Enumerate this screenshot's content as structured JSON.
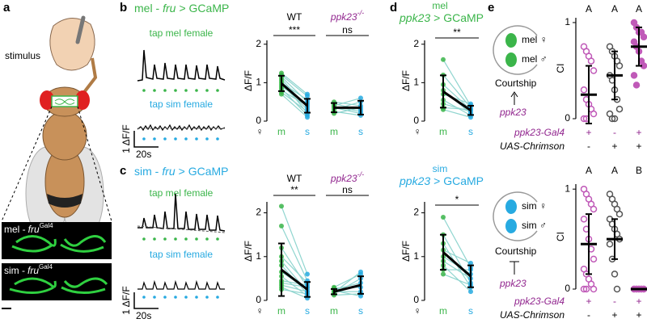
{
  "panels": {
    "a": {
      "label": "a",
      "stimulus": "stimulus",
      "brain_labels": [
        [
          "mel -",
          "fru",
          "Gal4"
        ],
        [
          "sim -",
          "fru",
          "Gal4"
        ]
      ]
    },
    "b": {
      "label": "b",
      "title": [
        "mel -",
        "fru",
        "> GCaMP"
      ],
      "traces": [
        "tap mel female",
        "tap sim female"
      ],
      "scale_y": "1 ΔF/F",
      "scale_x": "20s"
    },
    "c": {
      "label": "c",
      "title": [
        "sim -",
        "fru",
        "> GCaMP"
      ],
      "traces": [
        "tap mel female",
        "tap sim female"
      ],
      "scale_y": "1 ΔF/F",
      "scale_x": "20s"
    },
    "d": {
      "label": "d",
      "titles": [
        [
          "mel",
          "ppk23",
          "> GCaMP"
        ],
        [
          "sim",
          "ppk23",
          "> GCaMP"
        ]
      ]
    },
    "e": {
      "label": "e",
      "schematics": [
        {
          "female": "mel ♀",
          "male": "mel ♂",
          "behavior": "Courtship",
          "gene": "ppk23"
        },
        {
          "female": "sim ♀",
          "male": "sim ♂",
          "behavior": "Courtship",
          "gene": "ppk23"
        }
      ]
    }
  },
  "chart_data": [
    {
      "type": "paired",
      "ylabel": "ΔF/F",
      "ylim": [
        0,
        2.1
      ],
      "yticks": [
        0,
        1,
        2
      ],
      "sex": "♀",
      "category_colors": [
        "#3bb54a",
        "#27aae1"
      ],
      "pair_color": "#8fd5cf",
      "groups": [
        {
          "name": "WT",
          "name_color": "#000000",
          "name_italic": false,
          "sig": "***",
          "categories": [
            "m",
            "s"
          ],
          "mean": [
            0.98,
            0.4
          ],
          "error": [
            0.2,
            0.18
          ],
          "pairs": [
            [
              1.2,
              0.65
            ],
            [
              1.15,
              0.5
            ],
            [
              1.1,
              0.35
            ],
            [
              1.05,
              0.2
            ],
            [
              1.0,
              0.55
            ],
            [
              0.95,
              0.3
            ],
            [
              0.9,
              0.45
            ],
            [
              0.85,
              0.15
            ],
            [
              0.8,
              0.4
            ],
            [
              0.75,
              0.25
            ],
            [
              1.25,
              0.7
            ],
            [
              0.7,
              0.1
            ]
          ]
        },
        {
          "name": "ppk23",
          "name_sup": "-/-",
          "name_color": "#92278f",
          "name_italic": true,
          "sig": "ns",
          "categories": [
            "m",
            "s"
          ],
          "mean": [
            0.35,
            0.35
          ],
          "error": [
            0.12,
            0.18
          ],
          "pairs": [
            [
              0.45,
              0.3
            ],
            [
              0.4,
              0.6
            ],
            [
              0.35,
              0.2
            ],
            [
              0.3,
              0.5
            ],
            [
              0.25,
              0.15
            ],
            [
              0.5,
              0.4
            ],
            [
              0.2,
              0.35
            ],
            [
              0.38,
              0.25
            ]
          ]
        }
      ]
    },
    {
      "type": "paired",
      "ylabel": "ΔF/F",
      "ylim": [
        0,
        2.25
      ],
      "yticks": [
        0,
        1,
        2
      ],
      "sex": "♀",
      "category_colors": [
        "#3bb54a",
        "#27aae1"
      ],
      "pair_color": "#8fd5cf",
      "groups": [
        {
          "name": "WT",
          "name_color": "#000000",
          "name_italic": false,
          "sig": "**",
          "categories": [
            "m",
            "s"
          ],
          "mean": [
            0.7,
            0.25
          ],
          "error": [
            0.6,
            0.17
          ],
          "pairs": [
            [
              2.15,
              0.6
            ],
            [
              1.7,
              0.45
            ],
            [
              1.2,
              0.3
            ],
            [
              1.0,
              0.4
            ],
            [
              0.9,
              0.2
            ],
            [
              0.8,
              0.15
            ],
            [
              0.65,
              0.25
            ],
            [
              0.55,
              0.1
            ],
            [
              0.45,
              0.35
            ],
            [
              0.35,
              0.2
            ],
            [
              0.3,
              0.05
            ],
            [
              0.25,
              0.15
            ],
            [
              0.4,
              0.3
            ]
          ]
        },
        {
          "name": "ppk23",
          "name_sup": "-/-",
          "name_color": "#92278f",
          "name_italic": true,
          "sig": "ns",
          "categories": [
            "m",
            "s"
          ],
          "mean": [
            0.2,
            0.35
          ],
          "error": [
            0.06,
            0.2
          ],
          "pairs": [
            [
              0.3,
              0.6
            ],
            [
              0.25,
              0.4
            ],
            [
              0.2,
              0.2
            ],
            [
              0.15,
              0.5
            ],
            [
              0.22,
              0.1
            ],
            [
              0.28,
              0.3
            ],
            [
              0.18,
              0.65
            ],
            [
              0.12,
              0.15
            ]
          ]
        }
      ]
    },
    {
      "type": "paired",
      "ylabel": "ΔF/F",
      "ylim": [
        0,
        2.1
      ],
      "yticks": [
        0,
        1,
        2
      ],
      "sex": "♀",
      "category_colors": [
        "#3bb54a",
        "#27aae1"
      ],
      "pair_color": "#8fd5cf",
      "groups": [
        {
          "sig": "**",
          "categories": [
            "m",
            "s"
          ],
          "mean": [
            0.77,
            0.28
          ],
          "error": [
            0.42,
            0.12
          ],
          "pairs": [
            [
              1.6,
              0.4
            ],
            [
              1.2,
              0.35
            ],
            [
              0.95,
              0.3
            ],
            [
              0.8,
              0.2
            ],
            [
              0.7,
              0.45
            ],
            [
              0.55,
              0.15
            ],
            [
              0.45,
              0.25
            ],
            [
              0.35,
              0.3
            ],
            [
              0.3,
              0.1
            ]
          ]
        }
      ]
    },
    {
      "type": "paired",
      "ylabel": "ΔF/F",
      "ylim": [
        0,
        2.25
      ],
      "yticks": [
        0,
        1,
        2
      ],
      "sex": "♀",
      "category_colors": [
        "#3bb54a",
        "#27aae1"
      ],
      "pair_color": "#8fd5cf",
      "groups": [
        {
          "sig": "*",
          "categories": [
            "m",
            "s"
          ],
          "mean": [
            1.1,
            0.55
          ],
          "error": [
            0.4,
            0.25
          ],
          "pairs": [
            [
              1.9,
              0.75
            ],
            [
              1.5,
              0.4
            ],
            [
              1.3,
              0.3
            ],
            [
              1.15,
              0.85
            ],
            [
              1.0,
              0.6
            ],
            [
              0.9,
              0.5
            ],
            [
              0.8,
              0.2
            ],
            [
              0.7,
              0.7
            ],
            [
              0.6,
              0.35
            ]
          ]
        }
      ]
    },
    {
      "type": "strip",
      "ylabel": "CI",
      "ylim": [
        0,
        1.05
      ],
      "yticks": [
        0,
        1
      ],
      "letters": [
        "A",
        "A",
        "A"
      ],
      "groups": [
        {
          "style": "open",
          "color": "#c05ab8",
          "mean": 0.25,
          "error": 0.3,
          "values": [
            0.75,
            0.7,
            0.65,
            0.6,
            0.5,
            0.3,
            0.2,
            0.15,
            0.1,
            0.05,
            0.0,
            0.0
          ]
        },
        {
          "style": "open",
          "color": "#555555",
          "mean": 0.45,
          "error": 0.25,
          "values": [
            0.75,
            0.7,
            0.65,
            0.6,
            0.55,
            0.45,
            0.4,
            0.3,
            0.2,
            0.1,
            0.05,
            0.0,
            0.0
          ]
        },
        {
          "style": "filled",
          "color": "#c05ab8",
          "mean": 0.75,
          "error": 0.2,
          "values": [
            1.0,
            0.95,
            0.9,
            0.9,
            0.85,
            0.8,
            0.75,
            0.7,
            0.6,
            0.55,
            0.45,
            0.35
          ]
        }
      ],
      "genotype_rows": [
        {
          "name": "ppk23-Gal4",
          "color": "#92278f",
          "marks": [
            "+",
            "-",
            "+"
          ]
        },
        {
          "name": "UAS-Chrimson",
          "color": "#000000",
          "marks": [
            "-",
            "+",
            "+"
          ]
        }
      ]
    },
    {
      "type": "strip",
      "ylabel": "CI",
      "ylim": [
        0,
        1.05
      ],
      "yticks": [
        0,
        1
      ],
      "letters": [
        "A",
        "A",
        "B"
      ],
      "groups": [
        {
          "style": "open",
          "color": "#c05ab8",
          "mean": 0.45,
          "error": 0.3,
          "values": [
            1.0,
            0.95,
            0.9,
            0.85,
            0.8,
            0.7,
            0.6,
            0.5,
            0.4,
            0.3,
            0.2,
            0.15,
            0.1,
            0.05,
            0.0,
            0.0,
            0.0
          ]
        },
        {
          "style": "open",
          "color": "#555555",
          "mean": 0.5,
          "error": 0.2,
          "values": [
            0.95,
            0.9,
            0.85,
            0.8,
            0.75,
            0.7,
            0.65,
            0.6,
            0.55,
            0.5,
            0.45,
            0.3,
            0.15,
            0.0
          ]
        },
        {
          "style": "filled",
          "color": "#c05ab8",
          "mean": 0.0,
          "error": 0.0,
          "values": [
            0,
            0,
            0,
            0,
            0,
            0,
            0,
            0,
            0,
            0
          ]
        }
      ],
      "genotype_rows": [
        {
          "name": "ppk23-Gal4",
          "color": "#92278f",
          "marks": [
            "+",
            "-",
            "+"
          ]
        },
        {
          "name": "UAS-Chrimson",
          "color": "#000000",
          "marks": [
            "-",
            "+",
            "+"
          ]
        }
      ]
    }
  ]
}
